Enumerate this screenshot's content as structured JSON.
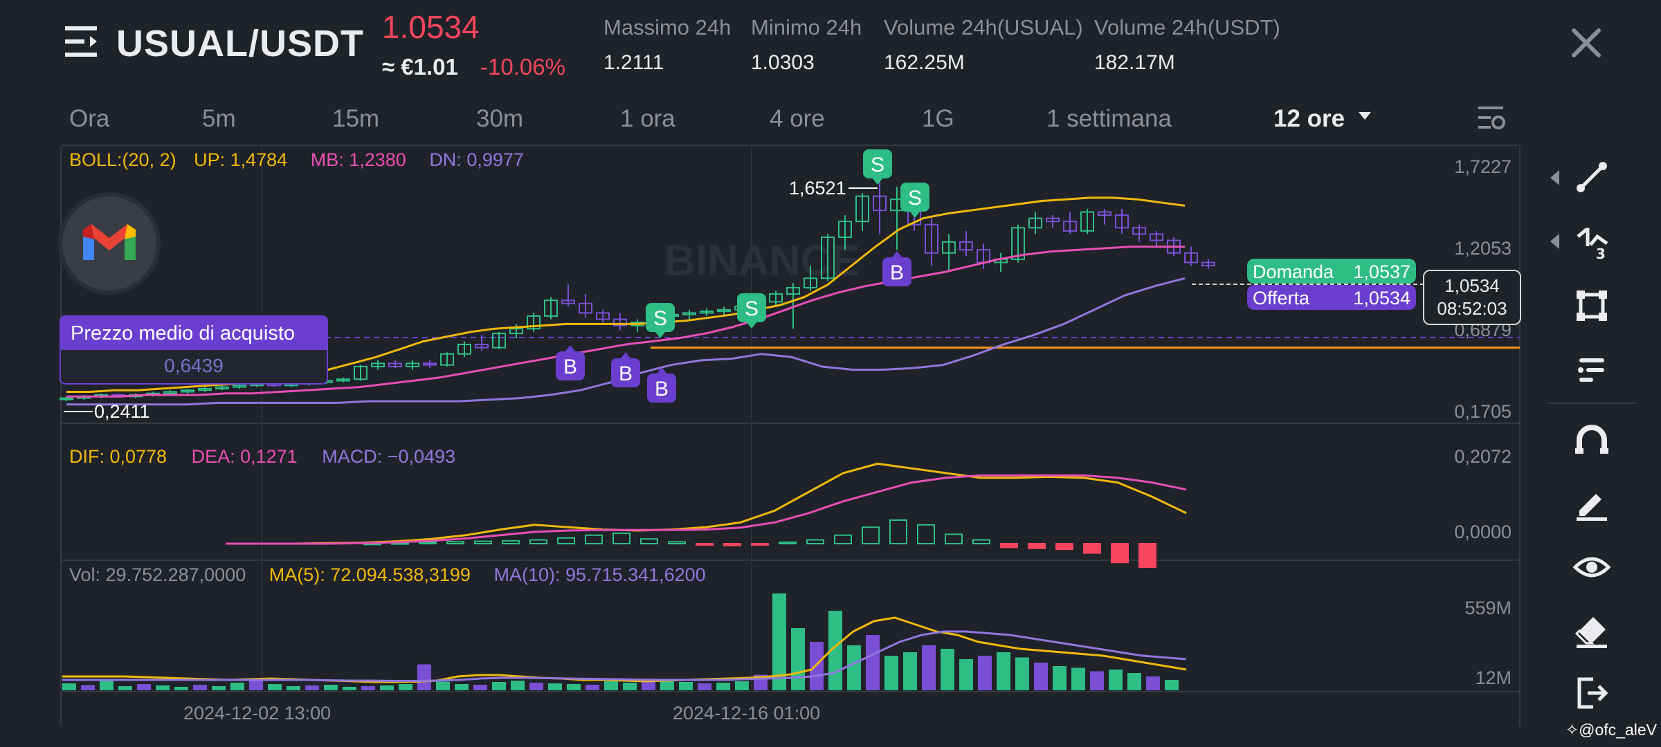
{
  "header": {
    "pair": "USUAL/USDT",
    "price": "1.0534",
    "fiat": "≈ €1.01",
    "change": "-10.06%",
    "stats": [
      {
        "label": "Massimo 24h",
        "value": "1.2111"
      },
      {
        "label": "Minimo 24h",
        "value": "1.0303"
      },
      {
        "label": "Volume 24h(USUAL)",
        "value": "162.25M"
      },
      {
        "label": "Volume 24h(USDT)",
        "value": "182.17M"
      }
    ]
  },
  "timeframes": [
    "Ora",
    "5m",
    "15m",
    "30m",
    "1 ora",
    "4 ore",
    "1G",
    "1 settimana"
  ],
  "selected_timeframe": "12 ore",
  "indicators": {
    "boll": {
      "name": "BOLL:(20, 2)",
      "up": "UP: 1,4784",
      "mb": "MB: 1,2380",
      "dn": "DN: 0,9977"
    },
    "macd": {
      "dif": "DIF: 0,0778",
      "dea": "DEA: 0,1271",
      "macd": "MACD: −0,0493"
    },
    "vol": {
      "vol": "Vol: 29.752.287,0000",
      "ma5": "MA(5): 72.094.538,3199",
      "ma10": "MA(10): 95.715.341,6200"
    }
  },
  "price_axis": [
    "1,7227",
    "1,2053",
    "0,6879",
    "0,1705"
  ],
  "macd_axis": [
    "0,2072",
    "0,0000"
  ],
  "vol_axis": [
    "559M",
    "12M"
  ],
  "x_axis": [
    "2024-12-02 13:00",
    "2024-12-16 01:00"
  ],
  "annotations": {
    "high": "1,6521",
    "low": "0,2411",
    "avg_label": "Prezzo medio di acquisto",
    "avg_value": "0,6439",
    "bid_label": "Domanda",
    "bid_value": "1,0537",
    "ask_label": "Offerta",
    "ask_value": "1,0534",
    "last_price": "1,0534",
    "countdown": "08:52:03",
    "buy_tag": "B",
    "sell_tag": "S"
  },
  "watermark": "BINANCE",
  "credit": "@ofc_aleV",
  "colors": {
    "up": "#2ebd85",
    "down": "#f6465d",
    "boll_up": "#f0b90b",
    "boll_mb": "#e84fb5",
    "boll_dn": "#9277dc",
    "dif": "#f0b90b",
    "dea": "#e84fb5",
    "accent_buy": "#6a3fd0",
    "accent_sell": "#2ebd85"
  },
  "chart_data": {
    "type": "candlestick",
    "ylim": [
      0.1705,
      1.7227
    ],
    "candles": [
      [
        0.26,
        0.27,
        0.24,
        0.26
      ],
      [
        0.26,
        0.28,
        0.25,
        0.27
      ],
      [
        0.27,
        0.29,
        0.26,
        0.28
      ],
      [
        0.28,
        0.29,
        0.27,
        0.27
      ],
      [
        0.27,
        0.29,
        0.26,
        0.28
      ],
      [
        0.28,
        0.3,
        0.27,
        0.29
      ],
      [
        0.29,
        0.31,
        0.28,
        0.3
      ],
      [
        0.3,
        0.32,
        0.29,
        0.31
      ],
      [
        0.31,
        0.33,
        0.3,
        0.32
      ],
      [
        0.32,
        0.34,
        0.31,
        0.33
      ],
      [
        0.33,
        0.35,
        0.32,
        0.34
      ],
      [
        0.34,
        0.36,
        0.33,
        0.35
      ],
      [
        0.35,
        0.36,
        0.33,
        0.34
      ],
      [
        0.34,
        0.36,
        0.33,
        0.35
      ],
      [
        0.35,
        0.37,
        0.34,
        0.36
      ],
      [
        0.36,
        0.38,
        0.35,
        0.37
      ],
      [
        0.37,
        0.39,
        0.36,
        0.38
      ],
      [
        0.38,
        0.47,
        0.37,
        0.46
      ],
      [
        0.46,
        0.5,
        0.44,
        0.48
      ],
      [
        0.48,
        0.5,
        0.45,
        0.46
      ],
      [
        0.46,
        0.5,
        0.44,
        0.48
      ],
      [
        0.48,
        0.5,
        0.45,
        0.47
      ],
      [
        0.47,
        0.55,
        0.46,
        0.54
      ],
      [
        0.54,
        0.62,
        0.52,
        0.6
      ],
      [
        0.6,
        0.66,
        0.56,
        0.58
      ],
      [
        0.58,
        0.68,
        0.57,
        0.67
      ],
      [
        0.67,
        0.73,
        0.64,
        0.7
      ],
      [
        0.7,
        0.8,
        0.68,
        0.78
      ],
      [
        0.78,
        0.9,
        0.76,
        0.88
      ],
      [
        0.88,
        0.98,
        0.84,
        0.86
      ],
      [
        0.86,
        0.92,
        0.77,
        0.8
      ],
      [
        0.8,
        0.82,
        0.74,
        0.76
      ],
      [
        0.76,
        0.8,
        0.69,
        0.72
      ],
      [
        0.72,
        0.76,
        0.68,
        0.74
      ],
      [
        0.74,
        0.8,
        0.72,
        0.78
      ],
      [
        0.78,
        0.82,
        0.75,
        0.79
      ],
      [
        0.79,
        0.82,
        0.76,
        0.8
      ],
      [
        0.8,
        0.83,
        0.78,
        0.81
      ],
      [
        0.81,
        0.84,
        0.79,
        0.82
      ],
      [
        0.82,
        0.85,
        0.8,
        0.84
      ],
      [
        0.84,
        0.88,
        0.82,
        0.87
      ],
      [
        0.87,
        0.94,
        0.85,
        0.92
      ],
      [
        0.92,
        0.99,
        0.7,
        0.96
      ],
      [
        0.96,
        1.1,
        0.94,
        1.02
      ],
      [
        1.02,
        1.3,
        1.0,
        1.28
      ],
      [
        1.28,
        1.42,
        1.2,
        1.38
      ],
      [
        1.38,
        1.56,
        1.32,
        1.54
      ],
      [
        1.54,
        1.65,
        1.3,
        1.45
      ],
      [
        1.45,
        1.6,
        1.2,
        1.52
      ],
      [
        1.52,
        1.56,
        1.32,
        1.36
      ],
      [
        1.36,
        1.4,
        1.1,
        1.18
      ],
      [
        1.18,
        1.3,
        1.06,
        1.25
      ],
      [
        1.25,
        1.32,
        1.16,
        1.2
      ],
      [
        1.2,
        1.24,
        1.08,
        1.12
      ],
      [
        1.12,
        1.18,
        1.06,
        1.14
      ],
      [
        1.14,
        1.36,
        1.12,
        1.34
      ],
      [
        1.34,
        1.44,
        1.3,
        1.4
      ],
      [
        1.4,
        1.42,
        1.34,
        1.38
      ],
      [
        1.38,
        1.44,
        1.3,
        1.32
      ],
      [
        1.32,
        1.46,
        1.3,
        1.44
      ],
      [
        1.44,
        1.46,
        1.36,
        1.42
      ],
      [
        1.42,
        1.46,
        1.3,
        1.34
      ],
      [
        1.34,
        1.36,
        1.25,
        1.3
      ],
      [
        1.3,
        1.32,
        1.22,
        1.26
      ],
      [
        1.26,
        1.28,
        1.16,
        1.18
      ],
      [
        1.18,
        1.22,
        1.1,
        1.12
      ],
      [
        1.12,
        1.14,
        1.08,
        1.1
      ]
    ],
    "boll_up": [
      0.3,
      0.3,
      0.31,
      0.31,
      0.32,
      0.33,
      0.34,
      0.35,
      0.37,
      0.39,
      0.41,
      0.44,
      0.48,
      0.52,
      0.57,
      0.62,
      0.65,
      0.68,
      0.7,
      0.71,
      0.72,
      0.73,
      0.73,
      0.73,
      0.73,
      0.74,
      0.75,
      0.77,
      0.79,
      0.82,
      0.85,
      0.9,
      0.98,
      1.1,
      1.22,
      1.33,
      1.4,
      1.43,
      1.45,
      1.47,
      1.49,
      1.51,
      1.52,
      1.53,
      1.53,
      1.52,
      1.5,
      1.48
    ],
    "boll_mb": [
      0.27,
      0.27,
      0.27,
      0.28,
      0.28,
      0.28,
      0.29,
      0.29,
      0.3,
      0.31,
      0.32,
      0.33,
      0.35,
      0.37,
      0.39,
      0.42,
      0.45,
      0.48,
      0.51,
      0.54,
      0.57,
      0.6,
      0.62,
      0.64,
      0.67,
      0.71,
      0.76,
      0.82,
      0.88,
      0.93,
      0.97,
      1.0,
      1.03,
      1.06,
      1.1,
      1.14,
      1.17,
      1.19,
      1.2,
      1.21,
      1.22,
      1.22,
      1.22
    ],
    "boll_dn": [
      0.22,
      0.22,
      0.22,
      0.22,
      0.22,
      0.23,
      0.23,
      0.23,
      0.23,
      0.23,
      0.24,
      0.24,
      0.24,
      0.24,
      0.25,
      0.26,
      0.28,
      0.31,
      0.36,
      0.42,
      0.47,
      0.5,
      0.51,
      0.54,
      0.52,
      0.46,
      0.44,
      0.44,
      0.45,
      0.47,
      0.53,
      0.6,
      0.66,
      0.73,
      0.82,
      0.91,
      0.97,
      1.02
    ],
    "macd_dif": [
      0.0,
      0.0,
      0.0,
      0.001,
      0.002,
      0.005,
      0.01,
      0.018,
      0.03,
      0.04,
      0.035,
      0.03,
      0.028,
      0.03,
      0.035,
      0.045,
      0.07,
      0.11,
      0.15,
      0.17,
      0.16,
      0.15,
      0.14,
      0.14,
      0.142,
      0.14,
      0.13,
      0.1,
      0.065
    ],
    "macd_dea": [
      0.0,
      0.0,
      0.0,
      0.0,
      0.001,
      0.003,
      0.006,
      0.011,
      0.018,
      0.025,
      0.028,
      0.029,
      0.029,
      0.029,
      0.03,
      0.034,
      0.045,
      0.065,
      0.09,
      0.11,
      0.13,
      0.14,
      0.145,
      0.145,
      0.145,
      0.145,
      0.14,
      0.13,
      0.115
    ],
    "macd_hist": [
      0.001,
      0.002,
      0.003,
      0.004,
      0.005,
      0.006,
      0.008,
      0.012,
      0.018,
      0.022,
      0.01,
      0.004,
      -0.002,
      -0.004,
      -0.002,
      0.003,
      0.008,
      0.018,
      0.035,
      0.05,
      0.04,
      0.02,
      0.008,
      -0.008,
      -0.01,
      -0.012,
      -0.02,
      -0.04,
      -0.05
    ],
    "volume": [
      20,
      15,
      28,
      12,
      18,
      14,
      10,
      16,
      12,
      22,
      35,
      18,
      12,
      14,
      16,
      10,
      12,
      14,
      18,
      75,
      25,
      18,
      16,
      24,
      28,
      22,
      20,
      18,
      16,
      26,
      22,
      30,
      28,
      24,
      20,
      22,
      26,
      45,
      280,
      180,
      140,
      230,
      130,
      160,
      100,
      110,
      130,
      120,
      90,
      100,
      110,
      95,
      80,
      70,
      65,
      55,
      60,
      50,
      40,
      30
    ],
    "vol_ma5": [
      40,
      40,
      40,
      40,
      38,
      36,
      34,
      32,
      30,
      32,
      34,
      32,
      30,
      28,
      26,
      24,
      24,
      25,
      28,
      40,
      44,
      44,
      40,
      36,
      34,
      30,
      30,
      28,
      26,
      28,
      30,
      32,
      34,
      36,
      40,
      46,
      60,
      120,
      170,
      200,
      210,
      190,
      170,
      160,
      140,
      130,
      120,
      115,
      110,
      105,
      100,
      90,
      80,
      70,
      60
    ],
    "vol_ma10": [
      30,
      30,
      30,
      30,
      30,
      30,
      30,
      30,
      30,
      30,
      30,
      30,
      29,
      28,
      28,
      27,
      27,
      28,
      30,
      34,
      36,
      36,
      35,
      34,
      33,
      32,
      31,
      30,
      30,
      30,
      30,
      32,
      34,
      36,
      40,
      50,
      80,
      110,
      140,
      160,
      170,
      170,
      165,
      160,
      150,
      140,
      130,
      120,
      110,
      100,
      95,
      90
    ],
    "avg_buy_price": 0.6439,
    "orange_line": 0.58
  }
}
